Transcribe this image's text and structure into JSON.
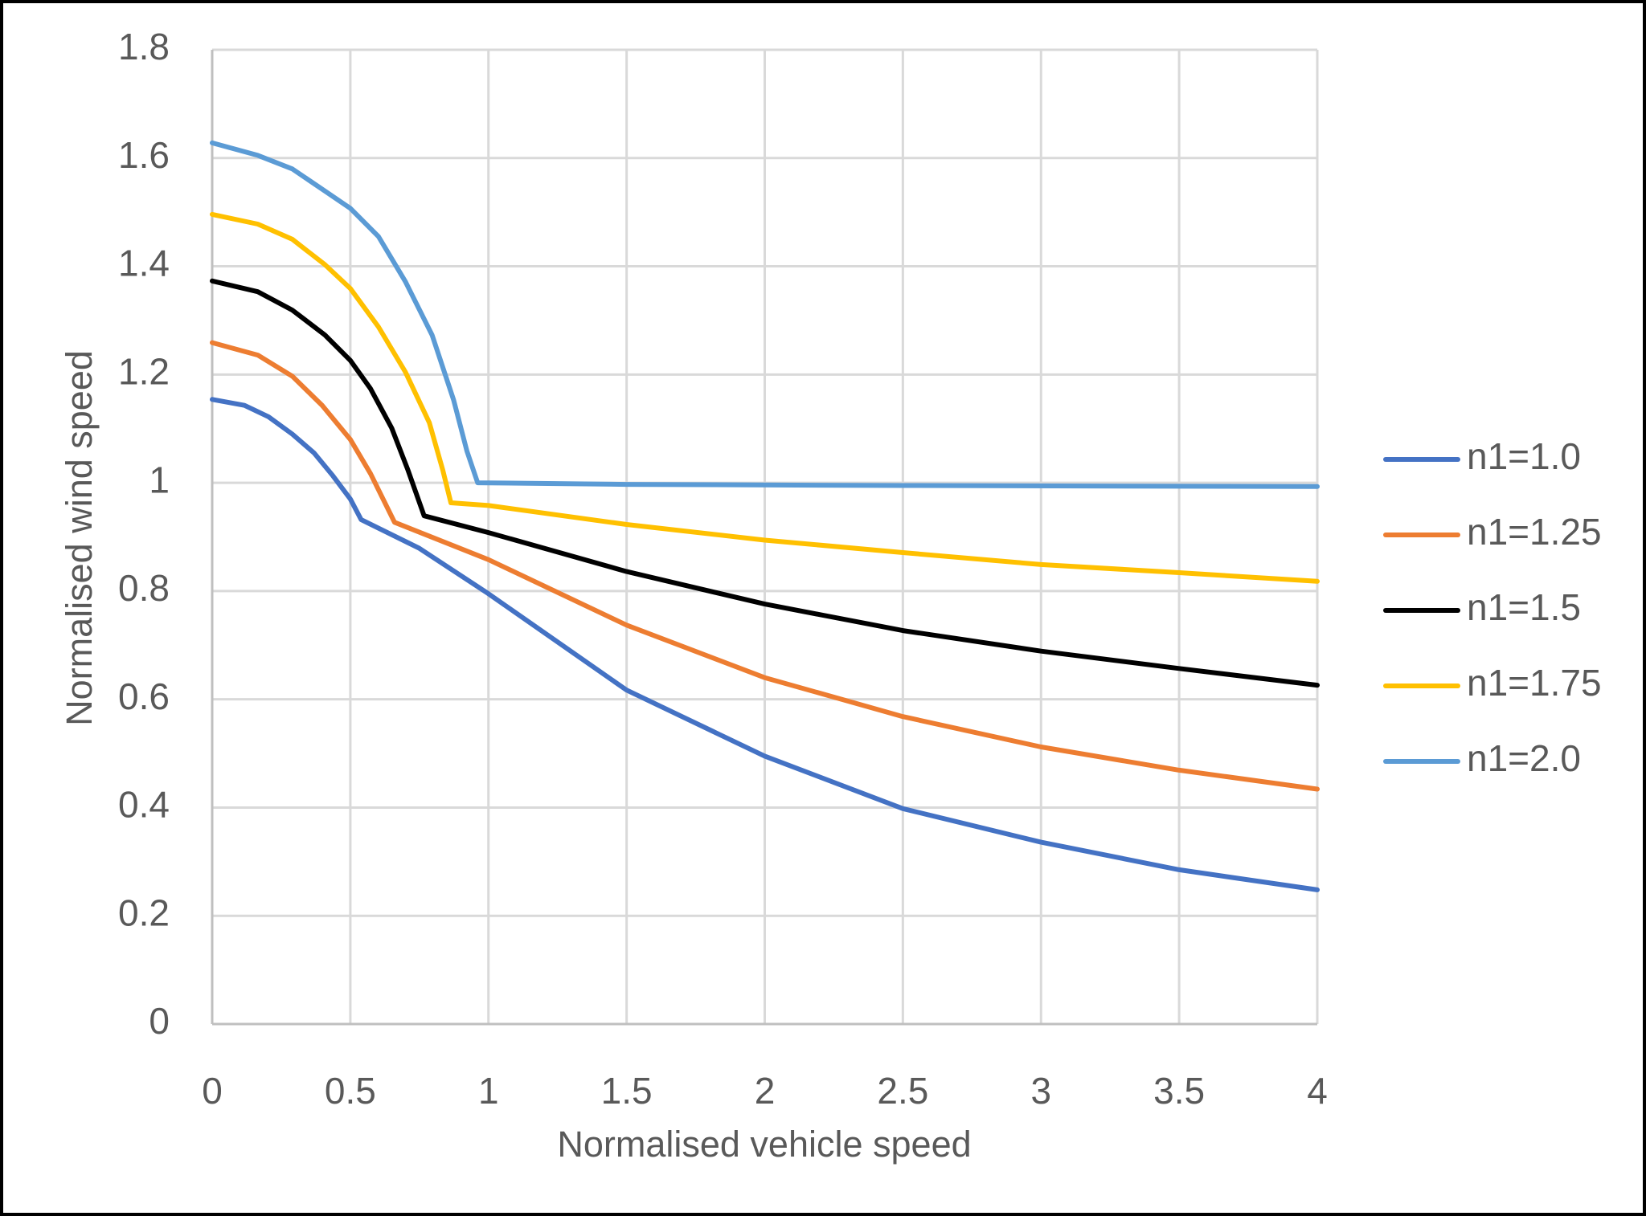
{
  "chart_data": {
    "type": "line",
    "title": "",
    "xlabel": "Normalised vehicle speed",
    "ylabel": "Normalised wind speed",
    "xlim": [
      0,
      4
    ],
    "ylim": [
      0,
      1.8
    ],
    "xticks": [
      "0",
      "0.5",
      "1",
      "1.5",
      "2",
      "2.5",
      "3",
      "3.5",
      "4"
    ],
    "yticks": [
      "0",
      "0.2",
      "0.4",
      "0.6",
      "0.8",
      "1",
      "1.2",
      "1.4",
      "1.6",
      "1.8"
    ],
    "grid": true,
    "legend_position": "right",
    "series": [
      {
        "name": "n1=1.0",
        "color": "#4472C4",
        "x": [
          0,
          0.117,
          0.204,
          0.29,
          0.369,
          0.437,
          0.5,
          0.539,
          0.75,
          1,
          1.5,
          2,
          2.5,
          3,
          3.5,
          4
        ],
        "y": [
          1.154,
          1.143,
          1.122,
          1.09,
          1.055,
          1.013,
          0.97,
          0.932,
          0.879,
          0.795,
          0.617,
          0.495,
          0.398,
          0.336,
          0.285,
          0.248
        ]
      },
      {
        "name": "n1=1.25",
        "color": "#ED7D31",
        "x": [
          0,
          0.165,
          0.29,
          0.398,
          0.5,
          0.573,
          0.66,
          1,
          1.5,
          2,
          2.5,
          3,
          3.5,
          4
        ],
        "y": [
          1.259,
          1.236,
          1.197,
          1.143,
          1.08,
          1.017,
          0.927,
          0.858,
          0.737,
          0.64,
          0.568,
          0.512,
          0.469,
          0.434
        ]
      },
      {
        "name": "n1=1.5",
        "color": "#000000",
        "x": [
          0,
          0.165,
          0.29,
          0.408,
          0.5,
          0.573,
          0.65,
          0.709,
          0.767,
          1,
          1.5,
          2,
          2.5,
          3,
          3.5,
          4
        ],
        "y": [
          1.373,
          1.353,
          1.319,
          1.273,
          1.226,
          1.174,
          1.101,
          1.023,
          0.939,
          0.908,
          0.836,
          0.776,
          0.727,
          0.689,
          0.657,
          0.626
        ]
      },
      {
        "name": "n1=1.75",
        "color": "#FFC000",
        "x": [
          0,
          0.165,
          0.29,
          0.408,
          0.5,
          0.602,
          0.699,
          0.786,
          0.835,
          0.864,
          1,
          1.5,
          2,
          2.5,
          3,
          3.5,
          4
        ],
        "y": [
          1.496,
          1.478,
          1.45,
          1.403,
          1.359,
          1.288,
          1.205,
          1.111,
          1.023,
          0.963,
          0.958,
          0.923,
          0.894,
          0.871,
          0.849,
          0.834,
          0.818
        ]
      },
      {
        "name": "n1=2.0",
        "color": "#5B9BD5",
        "x": [
          0,
          0.165,
          0.29,
          0.408,
          0.5,
          0.602,
          0.699,
          0.796,
          0.874,
          0.922,
          0.961,
          1.5,
          2.5,
          4
        ],
        "y": [
          1.628,
          1.605,
          1.58,
          1.539,
          1.507,
          1.455,
          1.372,
          1.273,
          1.153,
          1.059,
          1.0,
          0.997,
          0.995,
          0.993
        ]
      }
    ]
  }
}
